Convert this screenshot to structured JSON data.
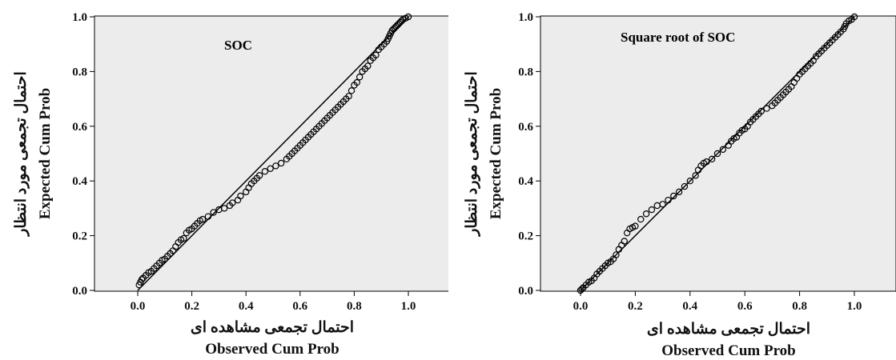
{
  "charts": [
    {
      "title": "SOC",
      "xlabel_fa": "احتمال تجمعی مشاهده ای",
      "xlabel_en": "Observed Cum Prob",
      "ylabel_fa": "احتمال تجمعی مورد انتظار",
      "ylabel_en": "Expected Cum Prob"
    },
    {
      "title": "Square root of SOC",
      "xlabel_fa": "احتمال تجمعی مشاهده ای",
      "xlabel_en": "Observed Cum Prob",
      "ylabel_fa": "احتمال تجمعی مورد انتظار",
      "ylabel_en": "Expected Cum Prob"
    }
  ],
  "chart_data": [
    {
      "type": "scatter",
      "title": "SOC",
      "xlabel": "Observed Cum Prob",
      "ylabel": "Expected Cum Prob",
      "xlim": [
        0.0,
        1.0
      ],
      "ylim": [
        0.0,
        1.0
      ],
      "x_ticks": [
        "0.0",
        "0.2",
        "0.4",
        "0.6",
        "0.8",
        "1.0"
      ],
      "y_ticks": [
        "0.0",
        "0.2",
        "0.4",
        "0.6",
        "0.8",
        "1.0"
      ],
      "reference_line": [
        [
          0,
          0
        ],
        [
          1,
          1
        ]
      ],
      "background": "#ececec",
      "marker_color": "#000000",
      "grid": false,
      "points": [
        [
          0.005,
          0.02
        ],
        [
          0.01,
          0.03
        ],
        [
          0.015,
          0.04
        ],
        [
          0.02,
          0.045
        ],
        [
          0.03,
          0.055
        ],
        [
          0.04,
          0.065
        ],
        [
          0.05,
          0.07
        ],
        [
          0.06,
          0.08
        ],
        [
          0.07,
          0.09
        ],
        [
          0.08,
          0.1
        ],
        [
          0.09,
          0.11
        ],
        [
          0.1,
          0.115
        ],
        [
          0.11,
          0.125
        ],
        [
          0.12,
          0.135
        ],
        [
          0.13,
          0.145
        ],
        [
          0.14,
          0.16
        ],
        [
          0.15,
          0.175
        ],
        [
          0.16,
          0.185
        ],
        [
          0.17,
          0.19
        ],
        [
          0.18,
          0.21
        ],
        [
          0.19,
          0.22
        ],
        [
          0.2,
          0.225
        ],
        [
          0.21,
          0.235
        ],
        [
          0.22,
          0.245
        ],
        [
          0.23,
          0.255
        ],
        [
          0.24,
          0.26
        ],
        [
          0.26,
          0.27
        ],
        [
          0.28,
          0.285
        ],
        [
          0.3,
          0.295
        ],
        [
          0.32,
          0.3
        ],
        [
          0.34,
          0.31
        ],
        [
          0.35,
          0.32
        ],
        [
          0.37,
          0.33
        ],
        [
          0.38,
          0.345
        ],
        [
          0.4,
          0.36
        ],
        [
          0.41,
          0.375
        ],
        [
          0.42,
          0.39
        ],
        [
          0.43,
          0.4
        ],
        [
          0.44,
          0.41
        ],
        [
          0.45,
          0.42
        ],
        [
          0.47,
          0.435
        ],
        [
          0.49,
          0.445
        ],
        [
          0.51,
          0.455
        ],
        [
          0.53,
          0.465
        ],
        [
          0.55,
          0.48
        ],
        [
          0.56,
          0.49
        ],
        [
          0.57,
          0.5
        ],
        [
          0.58,
          0.51
        ],
        [
          0.59,
          0.52
        ],
        [
          0.6,
          0.53
        ],
        [
          0.61,
          0.54
        ],
        [
          0.62,
          0.55
        ],
        [
          0.63,
          0.56
        ],
        [
          0.64,
          0.57
        ],
        [
          0.65,
          0.58
        ],
        [
          0.66,
          0.59
        ],
        [
          0.67,
          0.6
        ],
        [
          0.68,
          0.61
        ],
        [
          0.69,
          0.62
        ],
        [
          0.7,
          0.63
        ],
        [
          0.71,
          0.64
        ],
        [
          0.72,
          0.65
        ],
        [
          0.73,
          0.66
        ],
        [
          0.74,
          0.67
        ],
        [
          0.75,
          0.68
        ],
        [
          0.76,
          0.69
        ],
        [
          0.77,
          0.7
        ],
        [
          0.78,
          0.71
        ],
        [
          0.79,
          0.73
        ],
        [
          0.8,
          0.75
        ],
        [
          0.81,
          0.76
        ],
        [
          0.82,
          0.78
        ],
        [
          0.83,
          0.8
        ],
        [
          0.84,
          0.81
        ],
        [
          0.85,
          0.82
        ],
        [
          0.86,
          0.84
        ],
        [
          0.87,
          0.85
        ],
        [
          0.88,
          0.86
        ],
        [
          0.89,
          0.88
        ],
        [
          0.9,
          0.89
        ],
        [
          0.91,
          0.9
        ],
        [
          0.92,
          0.91
        ],
        [
          0.925,
          0.92
        ],
        [
          0.93,
          0.93
        ],
        [
          0.935,
          0.94
        ],
        [
          0.94,
          0.95
        ],
        [
          0.945,
          0.955
        ],
        [
          0.95,
          0.96
        ],
        [
          0.955,
          0.965
        ],
        [
          0.96,
          0.97
        ],
        [
          0.965,
          0.975
        ],
        [
          0.97,
          0.98
        ],
        [
          0.975,
          0.985
        ],
        [
          0.98,
          0.99
        ],
        [
          0.99,
          0.995
        ],
        [
          1.0,
          1.0
        ]
      ]
    },
    {
      "type": "scatter",
      "title": "Square root of SOC",
      "xlabel": "Observed Cum Prob",
      "ylabel": "Expected Cum Prob",
      "xlim": [
        0.0,
        1.0
      ],
      "ylim": [
        0.0,
        1.0
      ],
      "x_ticks": [
        "0.0",
        "0.2",
        "0.4",
        "0.6",
        "0.8",
        "1.0"
      ],
      "y_ticks": [
        "0.0",
        "0.2",
        "0.4",
        "0.6",
        "0.8",
        "1.0"
      ],
      "reference_line": [
        [
          0,
          0
        ],
        [
          1,
          1
        ]
      ],
      "background": "#ececec",
      "marker_color": "#000000",
      "grid": false,
      "points": [
        [
          0.0,
          0.0
        ],
        [
          0.005,
          0.005
        ],
        [
          0.01,
          0.01
        ],
        [
          0.02,
          0.02
        ],
        [
          0.03,
          0.03
        ],
        [
          0.04,
          0.035
        ],
        [
          0.05,
          0.045
        ],
        [
          0.06,
          0.06
        ],
        [
          0.07,
          0.07
        ],
        [
          0.08,
          0.08
        ],
        [
          0.09,
          0.09
        ],
        [
          0.1,
          0.1
        ],
        [
          0.11,
          0.105
        ],
        [
          0.12,
          0.115
        ],
        [
          0.13,
          0.13
        ],
        [
          0.14,
          0.15
        ],
        [
          0.15,
          0.165
        ],
        [
          0.16,
          0.18
        ],
        [
          0.17,
          0.21
        ],
        [
          0.18,
          0.225
        ],
        [
          0.19,
          0.23
        ],
        [
          0.2,
          0.235
        ],
        [
          0.22,
          0.26
        ],
        [
          0.24,
          0.28
        ],
        [
          0.26,
          0.295
        ],
        [
          0.28,
          0.31
        ],
        [
          0.3,
          0.315
        ],
        [
          0.32,
          0.33
        ],
        [
          0.34,
          0.345
        ],
        [
          0.36,
          0.36
        ],
        [
          0.38,
          0.38
        ],
        [
          0.4,
          0.4
        ],
        [
          0.42,
          0.42
        ],
        [
          0.43,
          0.44
        ],
        [
          0.44,
          0.455
        ],
        [
          0.45,
          0.465
        ],
        [
          0.46,
          0.47
        ],
        [
          0.48,
          0.48
        ],
        [
          0.5,
          0.5
        ],
        [
          0.52,
          0.515
        ],
        [
          0.54,
          0.53
        ],
        [
          0.55,
          0.545
        ],
        [
          0.56,
          0.555
        ],
        [
          0.57,
          0.56
        ],
        [
          0.58,
          0.575
        ],
        [
          0.59,
          0.585
        ],
        [
          0.6,
          0.59
        ],
        [
          0.61,
          0.6
        ],
        [
          0.62,
          0.615
        ],
        [
          0.63,
          0.625
        ],
        [
          0.64,
          0.635
        ],
        [
          0.65,
          0.645
        ],
        [
          0.66,
          0.655
        ],
        [
          0.68,
          0.665
        ],
        [
          0.7,
          0.675
        ],
        [
          0.71,
          0.685
        ],
        [
          0.72,
          0.695
        ],
        [
          0.73,
          0.705
        ],
        [
          0.74,
          0.715
        ],
        [
          0.75,
          0.725
        ],
        [
          0.76,
          0.735
        ],
        [
          0.77,
          0.745
        ],
        [
          0.78,
          0.76
        ],
        [
          0.79,
          0.775
        ],
        [
          0.8,
          0.79
        ],
        [
          0.81,
          0.8
        ],
        [
          0.82,
          0.81
        ],
        [
          0.83,
          0.82
        ],
        [
          0.84,
          0.83
        ],
        [
          0.85,
          0.84
        ],
        [
          0.86,
          0.855
        ],
        [
          0.87,
          0.865
        ],
        [
          0.88,
          0.875
        ],
        [
          0.89,
          0.885
        ],
        [
          0.9,
          0.895
        ],
        [
          0.91,
          0.905
        ],
        [
          0.92,
          0.915
        ],
        [
          0.93,
          0.925
        ],
        [
          0.94,
          0.935
        ],
        [
          0.95,
          0.945
        ],
        [
          0.96,
          0.955
        ],
        [
          0.965,
          0.965
        ],
        [
          0.97,
          0.975
        ],
        [
          0.98,
          0.985
        ],
        [
          0.99,
          0.99
        ],
        [
          1.0,
          1.0
        ]
      ]
    }
  ]
}
